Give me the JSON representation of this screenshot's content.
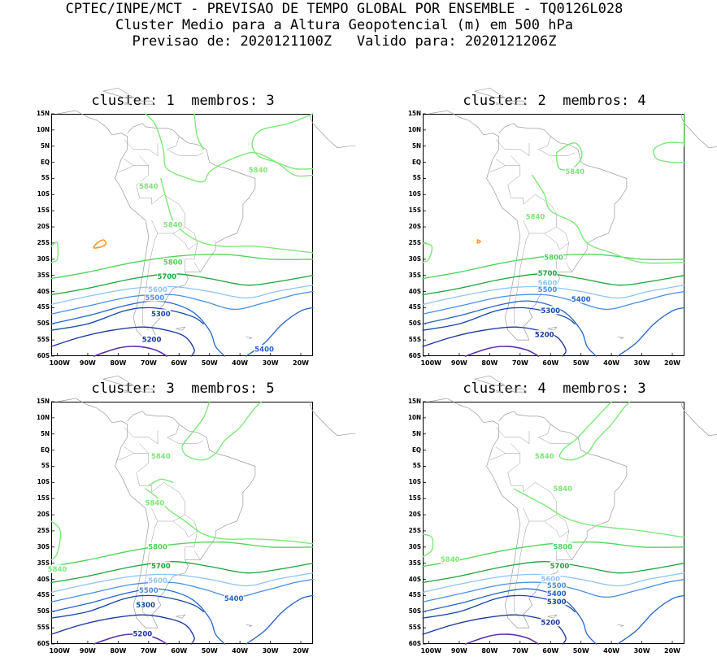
{
  "header": {
    "line1": "CPTEC/INPE/MCT - PREVISAO DE TEMPO GLOBAL POR ENSEMBLE - TQ0126L028",
    "line2": "Cluster Medio para a Altura Geopotencial (m) em 500 hPa",
    "line3": "Previsao de: 2020121100Z   Valido para: 2020121206Z"
  },
  "axes": {
    "lat_labels": [
      "15N",
      "10N",
      "5N",
      "EQ",
      "5S",
      "10S",
      "15S",
      "20S",
      "25S",
      "30S",
      "35S",
      "40S",
      "45S",
      "50S",
      "55S",
      "60S"
    ],
    "lon_labels": [
      "100W",
      "90W",
      "80W",
      "70W",
      "60W",
      "50W",
      "40W",
      "30W",
      "20W"
    ]
  },
  "colors": {
    "c5840": "#7de879",
    "c5800": "#4ed35a",
    "c5700": "#1ea33a",
    "c5600": "#8ec3f3",
    "c5500": "#4a8fe0",
    "c5400": "#2563c9",
    "c5300": "#1346a8",
    "c5200": "#1a33a0",
    "c5100": "#5a2fa8",
    "c_low": "#f29b1d",
    "coast": "#9a9a9a"
  },
  "panels": [
    {
      "title": "cluster: 1  membros: 3",
      "labels": [
        {
          "text": "5840",
          "level": "c5840"
        },
        {
          "text": "5840",
          "level": "c5840"
        },
        {
          "text": "5840",
          "level": "c5840"
        },
        {
          "text": "5800",
          "level": "c5800"
        },
        {
          "text": "5700",
          "level": "c5700"
        },
        {
          "text": "5600",
          "level": "c5600"
        },
        {
          "text": "5500",
          "level": "c5500"
        },
        {
          "text": "5300",
          "level": "c5300"
        },
        {
          "text": "5200",
          "level": "c5200"
        },
        {
          "text": "5400",
          "level": "c5400"
        }
      ]
    },
    {
      "title": "cluster: 2  membros: 4",
      "labels": [
        {
          "text": "5840",
          "level": "c5840"
        },
        {
          "text": "5840",
          "level": "c5840"
        },
        {
          "text": "5800",
          "level": "c5800"
        },
        {
          "text": "5700",
          "level": "c5700"
        },
        {
          "text": "5600",
          "level": "c5600"
        },
        {
          "text": "5500",
          "level": "c5500"
        },
        {
          "text": "5400",
          "level": "c5400"
        },
        {
          "text": "5300",
          "level": "c5300"
        },
        {
          "text": "5200",
          "level": "c5200"
        }
      ]
    },
    {
      "title": "cluster: 3  membros: 5",
      "labels": [
        {
          "text": "5840",
          "level": "c5840"
        },
        {
          "text": "5840",
          "level": "c5840"
        },
        {
          "text": "5840",
          "level": "c5840"
        },
        {
          "text": "5800",
          "level": "c5800"
        },
        {
          "text": "5700",
          "level": "c5700"
        },
        {
          "text": "5600",
          "level": "c5600"
        },
        {
          "text": "5500",
          "level": "c5500"
        },
        {
          "text": "5400",
          "level": "c5400"
        },
        {
          "text": "5300",
          "level": "c5300"
        },
        {
          "text": "5200",
          "level": "c5200"
        }
      ]
    },
    {
      "title": "cluster: 4  membros: 3",
      "labels": [
        {
          "text": "5840",
          "level": "c5840"
        },
        {
          "text": "5840",
          "level": "c5840"
        },
        {
          "text": "5840",
          "level": "c5840"
        },
        {
          "text": "5800",
          "level": "c5800"
        },
        {
          "text": "5700",
          "level": "c5700"
        },
        {
          "text": "5600",
          "level": "c5600"
        },
        {
          "text": "5500",
          "level": "c5500"
        },
        {
          "text": "5400",
          "level": "c5400"
        },
        {
          "text": "5300",
          "level": "c5300"
        },
        {
          "text": "5200",
          "level": "c5200"
        }
      ]
    }
  ]
}
